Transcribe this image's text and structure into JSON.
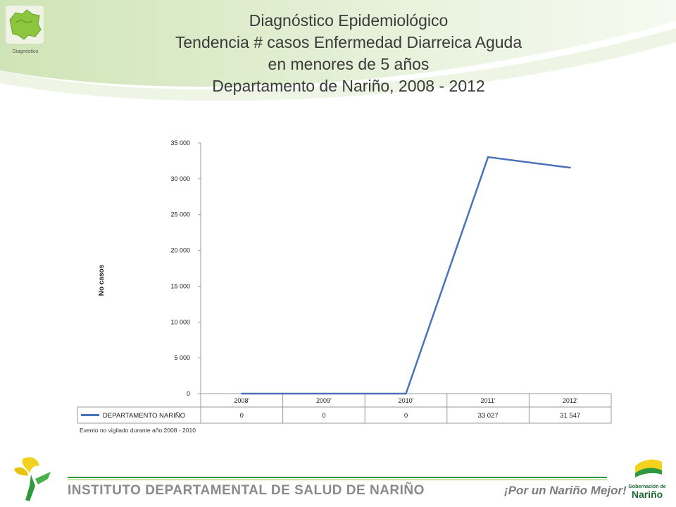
{
  "header": {
    "title_lines": [
      "Diagnóstico Epidemiológico",
      "Tendencia # casos Enfermedad Diarreica Aguda",
      "en menores de 5 años",
      "Departamento de Nariño,  2008 - 2012"
    ],
    "logo_caption": "Diagnóstico"
  },
  "chart_data": {
    "type": "line",
    "categories": [
      "2008'",
      "2009'",
      "2010'",
      "2011'",
      "2012'"
    ],
    "series": [
      {
        "name": "DEPARTAMENTO NARIÑO",
        "values": [
          0,
          0,
          0,
          33027,
          31547
        ],
        "labels": [
          "0",
          "0",
          "0",
          "33 027",
          "31 547"
        ],
        "color": "#4a72b8"
      }
    ],
    "ylabel": "No casos",
    "ylim": [
      0,
      35000
    ],
    "yticks": [
      "0",
      "5 000",
      "10 000",
      "15 000",
      "20 000",
      "25 000",
      "30 000",
      "35 000"
    ],
    "grid": false,
    "legend": "data-table",
    "note": "Evento no vigilado durante año 2008 - 2010"
  },
  "footer": {
    "institute": "INSTITUTO DEPARTAMENTAL DE SALUD DE NARIÑO",
    "slogan": "¡Por un Nariño Mejor!",
    "gob_line1": "Gobernación de",
    "gob_line2": "Nariño"
  },
  "colors": {
    "accent_green": "#8cc63f",
    "dark_green": "#2e9a3c",
    "series_blue": "#4a72b8"
  }
}
